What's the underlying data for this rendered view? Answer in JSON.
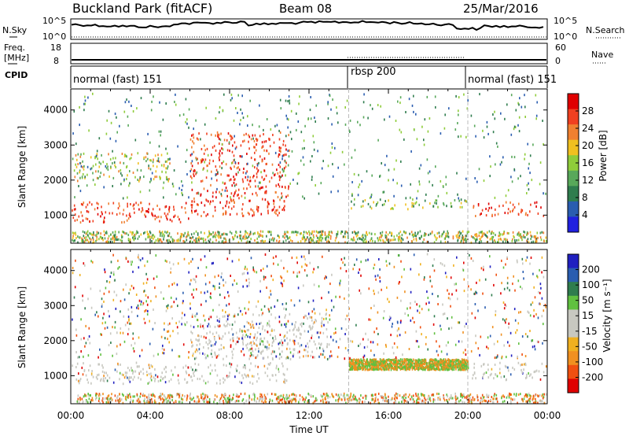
{
  "header": {
    "station": "Buckland Park (fitACF)",
    "beam": "Beam 08",
    "date": "25/Mar/2016"
  },
  "noise_panel": {
    "left_label": "N.Sky",
    "right_label": "N.Search",
    "left_ticks": [
      "10^5",
      "10^0"
    ],
    "right_ticks": [
      "10^5",
      "10^0"
    ]
  },
  "freq_panel": {
    "left_label_line1": "Freq.",
    "left_label_line2": "[MHz]",
    "right_label": "Nave",
    "left_ticks": [
      "18",
      "8"
    ],
    "right_ticks": [
      "60",
      "0"
    ]
  },
  "cpid": {
    "label": "CPID",
    "segments": [
      {
        "name": "normal (fast) 151",
        "start": "00:00",
        "end": "14:00"
      },
      {
        "name": "rbsp 200",
        "start": "14:00",
        "end": "20:00"
      },
      {
        "name": "normal (fast) 151",
        "start": "20:00",
        "end": "24:00"
      }
    ]
  },
  "chart_data": [
    {
      "type": "heatmap",
      "title": "",
      "xlabel": "Time UT",
      "ylabel": "Slant Range [km]",
      "x_ticks": [
        "00:00",
        "04:00",
        "08:00",
        "12:00",
        "16:00",
        "20:00",
        "00:00"
      ],
      "y_ticks": [
        "1000",
        "2000",
        "3000",
        "4000"
      ],
      "ylim": [
        200,
        4600
      ],
      "colorbar": {
        "label": "Power [dB]",
        "ticks": [
          "28",
          "24",
          "20",
          "16",
          "12",
          "8",
          "4"
        ],
        "range": [
          0,
          30
        ],
        "colors": [
          "#2020e0",
          "#2a5db0",
          "#2f7d4e",
          "#58a85a",
          "#8fcc3a",
          "#f0c020",
          "#f08030",
          "#f04020",
          "#e00000"
        ]
      },
      "echo_regions_hours_km": [
        {
          "t0": 0,
          "t1": 6,
          "r0": 800,
          "r1": 1400,
          "level": 28
        },
        {
          "t0": 6,
          "t1": 11,
          "r0": 1000,
          "r1": 3400,
          "level": 24
        },
        {
          "t0": 14,
          "t1": 20,
          "r0": 1200,
          "r1": 1500,
          "level": 12
        },
        {
          "t0": 20.2,
          "t1": 24,
          "r0": 1000,
          "r1": 1400,
          "level": 28
        },
        {
          "t0": 0,
          "t1": 5,
          "r0": 2000,
          "r1": 2800,
          "level": 16
        }
      ]
    },
    {
      "type": "heatmap",
      "title": "",
      "xlabel": "Time UT",
      "ylabel": "Slant Range [km]",
      "x_ticks": [
        "00:00",
        "04:00",
        "08:00",
        "12:00",
        "16:00",
        "20:00",
        "00:00"
      ],
      "y_ticks": [
        "1000",
        "2000",
        "3000",
        "4000"
      ],
      "ylim": [
        200,
        4600
      ],
      "colorbar": {
        "label": "Velocity [m s⁻¹]",
        "ticks": [
          "200",
          "100",
          "50",
          "15",
          "-15",
          "-50",
          "-100",
          "-200"
        ],
        "range": [
          -250,
          250
        ],
        "colors": [
          "#e00000",
          "#f05010",
          "#f09020",
          "#f0b020",
          "#c8c8c0",
          "#c8c8c0",
          "#60c040",
          "#2f7d4e",
          "#2a5db0",
          "#2020c0"
        ]
      }
    }
  ]
}
